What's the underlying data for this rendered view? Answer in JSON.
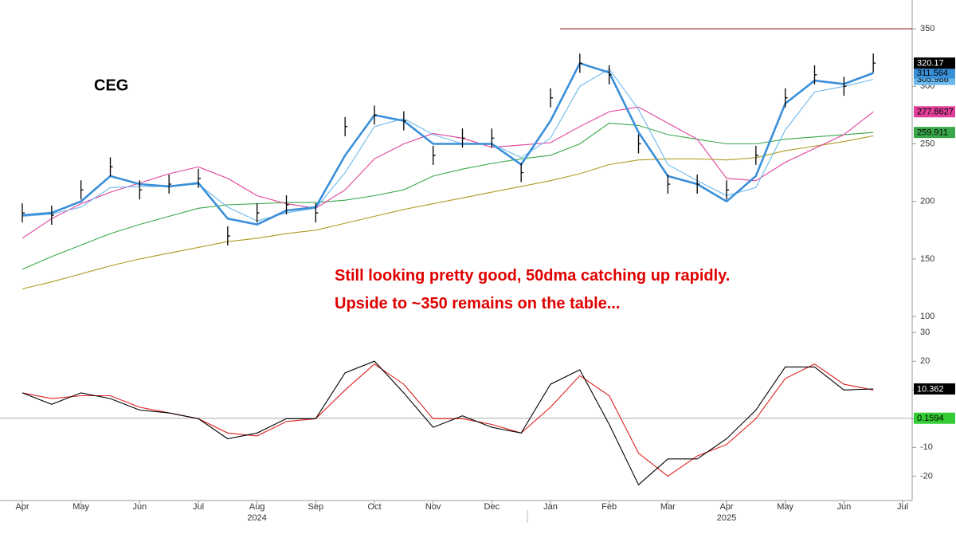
{
  "chart_data": {
    "type": "line",
    "title": "CEG",
    "annotation_lines": [
      "Still looking pretty good, 50dma catching up rapidly.",
      "Upside to ~350 remains on the table..."
    ],
    "categories": [
      "Apr",
      null,
      "May",
      null,
      "Jun",
      null,
      "Jul",
      null,
      "Aug",
      null,
      "Sep",
      null,
      "Oct",
      null,
      "Nov",
      null,
      "Dec",
      null,
      "Jan",
      null,
      "Feb",
      null,
      "Mar",
      null,
      "Apr",
      null,
      "May",
      null,
      "Jun",
      null,
      "Jul"
    ],
    "years": [
      "2024",
      "2025"
    ],
    "ylim": [
      94.5,
      375
    ],
    "yticks": [
      100,
      150,
      200,
      250,
      300,
      350
    ],
    "resistance": 350,
    "resistance_color": "#a83232",
    "series": [
      {
        "color": "#000000",
        "style": "bars",
        "tag": true,
        "values": [
          190,
          188,
          210,
          230,
          210,
          215,
          220,
          170,
          190,
          197,
          190,
          265,
          275,
          270,
          240,
          255,
          255,
          225,
          290,
          320,
          310,
          250,
          215,
          215,
          210,
          240,
          290,
          310,
          300,
          320.17,
          null
        ]
      },
      {
        "color": "#3a8fd9",
        "style": "thick",
        "tag": true,
        "values": [
          188,
          190,
          200,
          222,
          215,
          213,
          216,
          185,
          180,
          192,
          195,
          240,
          275,
          270,
          250,
          250,
          250,
          232,
          270,
          320,
          312,
          260,
          222,
          215,
          200,
          222,
          285,
          305,
          302,
          311.564,
          null
        ]
      },
      {
        "color": "#6cb8ec",
        "style": "thin",
        "tag": true,
        "values": [
          187,
          189,
          195,
          212,
          213,
          213,
          215,
          195,
          183,
          190,
          194,
          225,
          265,
          272,
          258,
          250,
          250,
          238,
          255,
          300,
          315,
          280,
          232,
          218,
          205,
          212,
          262,
          295,
          300,
          305.986,
          null
        ]
      },
      {
        "color": "#e0409a",
        "style": "thin",
        "tag": true,
        "values": [
          168,
          185,
          198,
          208,
          216,
          224,
          230,
          220,
          205,
          198,
          194,
          210,
          237,
          250,
          259,
          255,
          247,
          249,
          251,
          265,
          278,
          282,
          268,
          254,
          220,
          218,
          234,
          246,
          258,
          277.8627,
          null
        ]
      },
      {
        "color": "#3aa84a",
        "style": "thin",
        "tag": true,
        "values": [
          141,
          152,
          162,
          172,
          180,
          187,
          194,
          197,
          198,
          199,
          199,
          201,
          205,
          210,
          222,
          228,
          233,
          237,
          240,
          250,
          268,
          266,
          258,
          254,
          250,
          250,
          254,
          256,
          258,
          259.911,
          null
        ]
      },
      {
        "color": "#b09a20",
        "style": "thin",
        "tag": false,
        "values": [
          124,
          130,
          137,
          144,
          150,
          155,
          160,
          165,
          168,
          172,
          175,
          181,
          187,
          193,
          198,
          203,
          208,
          213,
          218,
          224,
          232,
          236,
          237,
          237,
          236,
          238,
          244,
          248,
          252,
          257,
          null
        ]
      }
    ],
    "lower": {
      "ylim": [
        -28.5,
        32
      ],
      "yticks": [
        -20,
        -10,
        0,
        10,
        20,
        30
      ],
      "reference": 0.1594,
      "reference_color": "#33cc33",
      "series": [
        {
          "color": "#000000",
          "tag": true,
          "values": [
            9,
            5,
            9,
            7,
            3,
            2,
            0,
            -7,
            -5,
            0,
            0,
            16,
            20,
            9,
            -3,
            1,
            -3,
            -5,
            12,
            17,
            -2,
            -23,
            -14,
            -14,
            -7,
            3,
            18,
            18,
            10,
            10.362,
            null
          ]
        },
        {
          "color": "#e02020",
          "tag": false,
          "values": [
            9,
            7,
            8,
            8,
            4,
            2,
            0,
            -5,
            -6,
            -1,
            0,
            10,
            19,
            12,
            0,
            0,
            -2,
            -5,
            4,
            15,
            8,
            -12,
            -20,
            -13,
            -9,
            0,
            14,
            19,
            12,
            10,
            null
          ]
        }
      ]
    }
  }
}
